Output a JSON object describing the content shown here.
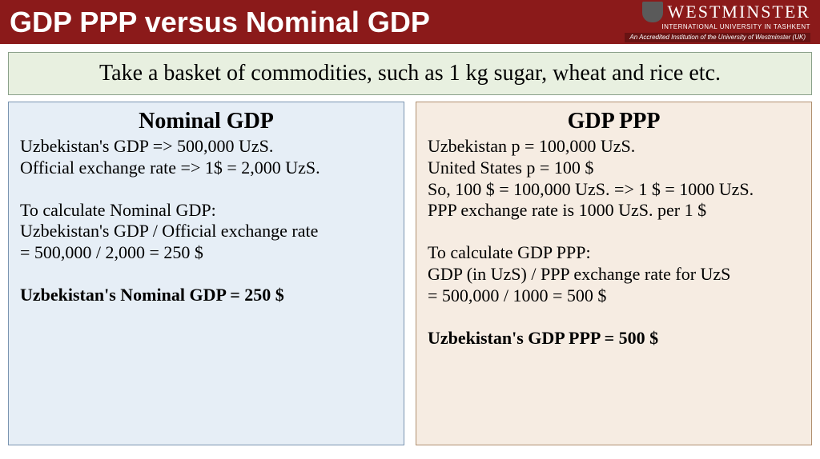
{
  "header": {
    "title": "GDP PPP versus Nominal GDP",
    "logo_main": "WESTMINSTER",
    "logo_sub": "INTERNATIONAL UNIVERSITY IN TASHKENT",
    "logo_tag": "An Accredited Institution of the University of Westminster (UK)",
    "bg_color": "#8b1a1a",
    "text_color": "#ffffff"
  },
  "intro": {
    "text": "Take a basket of commodities, such as 1 kg sugar, wheat and rice etc.",
    "bg_color": "#e8f0e0",
    "border_color": "#8aa08a",
    "fontsize": 28
  },
  "left": {
    "title": "Nominal GDP",
    "l1": "Uzbekistan's GDP => 500,000 UzS.",
    "l2": "Official exchange rate => 1$ = 2,000 UzS.",
    "l3": "To calculate Nominal GDP:",
    "l4": "Uzbekistan's GDP / Official exchange rate",
    "l5": "= 500,000 / 2,000 = 250 $",
    "result": "Uzbekistan's Nominal GDP = 250 $",
    "bg_color": "#e6eef6",
    "border_color": "#7a94b0"
  },
  "right": {
    "title": "GDP PPP",
    "l1": "Uzbekistan p = 100,000 UzS.",
    "l2": "United States p = 100 $",
    "l3": "So, 100 $ = 100,000 UzS. => 1 $ = 1000 UzS.",
    "l4": "PPP exchange rate is 1000 UzS. per 1 $",
    "l5": "To calculate GDP PPP:",
    "l6": "GDP (in UzS) / PPP exchange rate for UzS",
    "l7": "= 500,000 / 1000 = 500 $",
    "result": "Uzbekistan's GDP PPP = 500 $",
    "bg_color": "#f6ece2",
    "border_color": "#b09070"
  },
  "typography": {
    "title_fontsize": 36,
    "panel_title_fontsize": 28,
    "body_fontsize": 22,
    "font_family": "Times New Roman"
  }
}
